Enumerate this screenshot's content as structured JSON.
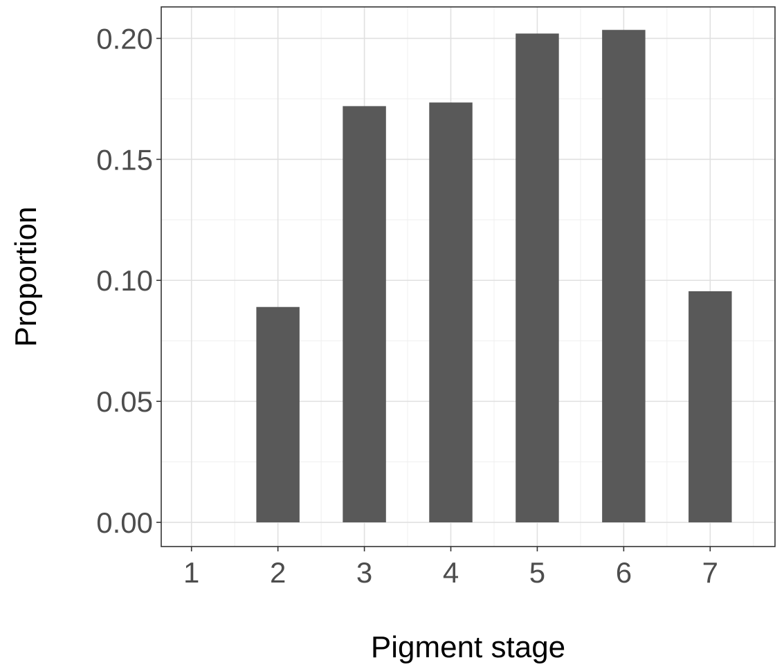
{
  "chart_data": {
    "type": "bar",
    "categories": [
      "1",
      "2",
      "3",
      "4",
      "5",
      "6",
      "7"
    ],
    "values": [
      0.0,
      0.089,
      0.172,
      0.1735,
      0.202,
      0.2035,
      0.0955
    ],
    "xlabel": "Pigment stage",
    "ylabel": "Proportion",
    "ylim": [
      -0.01,
      0.213
    ],
    "yticks": [
      "0.00",
      "0.05",
      "0.10",
      "0.15",
      "0.20"
    ],
    "ytick_values": [
      0.0,
      0.05,
      0.1,
      0.15,
      0.2
    ],
    "grid": true,
    "bar_color": "#595959",
    "panel_border_color": "#333333"
  }
}
